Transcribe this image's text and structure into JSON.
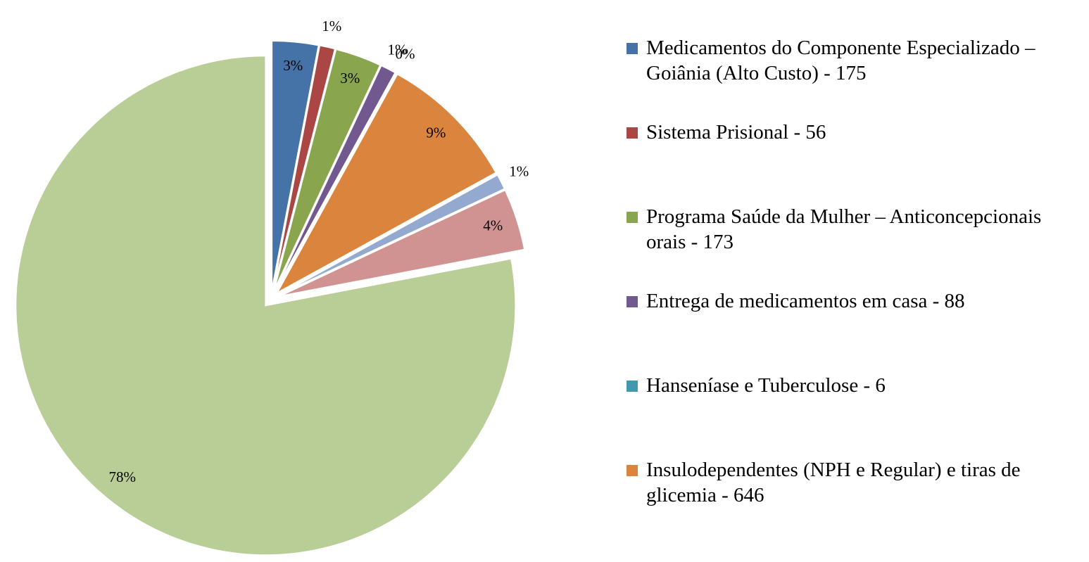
{
  "chart_data": {
    "type": "pie",
    "categories": [
      "Medicamentos do Componente Especializado – Goiânia (Alto Custo) - 175",
      "Sistema Prisional - 56",
      "Programa Saúde da Mulher – Anticoncepcionais orais - 173",
      "Entrega de medicamentos em casa - 88",
      "Hanseníase e Tuberculose - 6",
      "Insulodependentes (NPH e Regular) e tiras de glicemia - 646",
      null,
      null,
      null
    ],
    "values": [
      3,
      1,
      3,
      1,
      0,
      9,
      1,
      4,
      78
    ],
    "value_labels": [
      "3%",
      "1%",
      "3%",
      "1%",
      "0%",
      "9%",
      "1%",
      "4%",
      "78%"
    ],
    "colors": [
      "#4572a7",
      "#aa4643",
      "#89a54e",
      "#71588f",
      "#4198af",
      "#db843d",
      "#93a9cf",
      "#d19392",
      "#b9cd96"
    ]
  }
}
